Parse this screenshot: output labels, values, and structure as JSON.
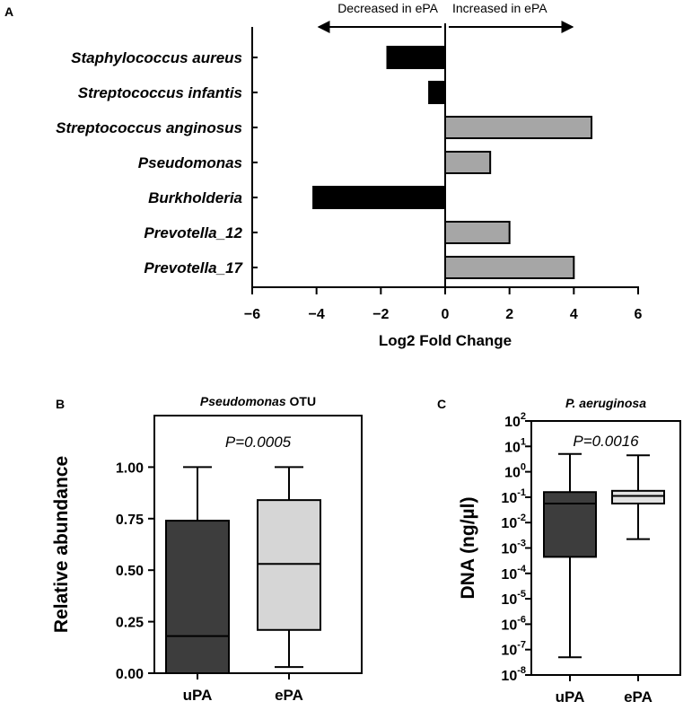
{
  "chart_data": [
    {
      "panel": "A",
      "type": "bar",
      "orientation": "horizontal",
      "categories": [
        "Staphylococcus aureus",
        "Streptococcus infantis",
        "Streptococcus anginosus",
        "Pseudomonas",
        "Burkholderia",
        "Prevotella_12",
        "Prevotella_17"
      ],
      "values": [
        -1.8,
        -0.5,
        4.55,
        1.4,
        -4.1,
        2.0,
        4.0
      ],
      "xlabel": "Log2 Fold Change",
      "xlim": [
        -6,
        6
      ],
      "xticks": [
        -6,
        -4,
        -2,
        0,
        2,
        4,
        6
      ],
      "annotations": {
        "left": "Decreased in ePA",
        "right": "Increased in ePA"
      },
      "colors": {
        "negative": "#000000",
        "positive": "#a6a6a6"
      }
    },
    {
      "panel": "B",
      "type": "box",
      "title": "Pseudomonas OTU",
      "title_parts": {
        "italic": "Pseudomonas",
        "normal": " OTU"
      },
      "ylabel": "Relative abundance",
      "ylim": [
        0,
        1.25
      ],
      "yticks": [
        "0.00",
        "0.25",
        "0.50",
        "0.75",
        "1.00"
      ],
      "categories": [
        "uPA",
        "ePA"
      ],
      "boxes": [
        {
          "name": "uPA",
          "min": 0.0,
          "q1": 0.0,
          "median": 0.18,
          "q3": 0.74,
          "max": 1.0,
          "color": "#3d3d3d"
        },
        {
          "name": "ePA",
          "min": 0.03,
          "q1": 0.21,
          "median": 0.53,
          "q3": 0.84,
          "max": 1.0,
          "color": "#d6d6d6"
        }
      ],
      "annotation": "P=0.0005"
    },
    {
      "panel": "C",
      "type": "box",
      "title": "P. aeruginosa",
      "ylabel": "DNA (ng/µl)",
      "yscale": "log",
      "ylim_exp": [
        -8,
        2
      ],
      "yticks_exp": [
        "2",
        "1",
        "0",
        "-1",
        "-2",
        "-3",
        "-4",
        "-5",
        "-6",
        "-7",
        "-8"
      ],
      "categories": [
        "uPA",
        "ePA"
      ],
      "boxes": [
        {
          "name": "uPA",
          "min_exp": -7.3,
          "q1_exp": -3.35,
          "median_exp": -1.25,
          "q3_exp": -0.8,
          "max_exp": 0.7,
          "color": "#3d3d3d"
        },
        {
          "name": "ePA",
          "min_exp": -2.65,
          "q1_exp": -1.25,
          "median_exp": -0.95,
          "q3_exp": -0.75,
          "max_exp": 0.65,
          "color": "#e2e2e2"
        }
      ],
      "annotation": "P=0.0016"
    }
  ]
}
